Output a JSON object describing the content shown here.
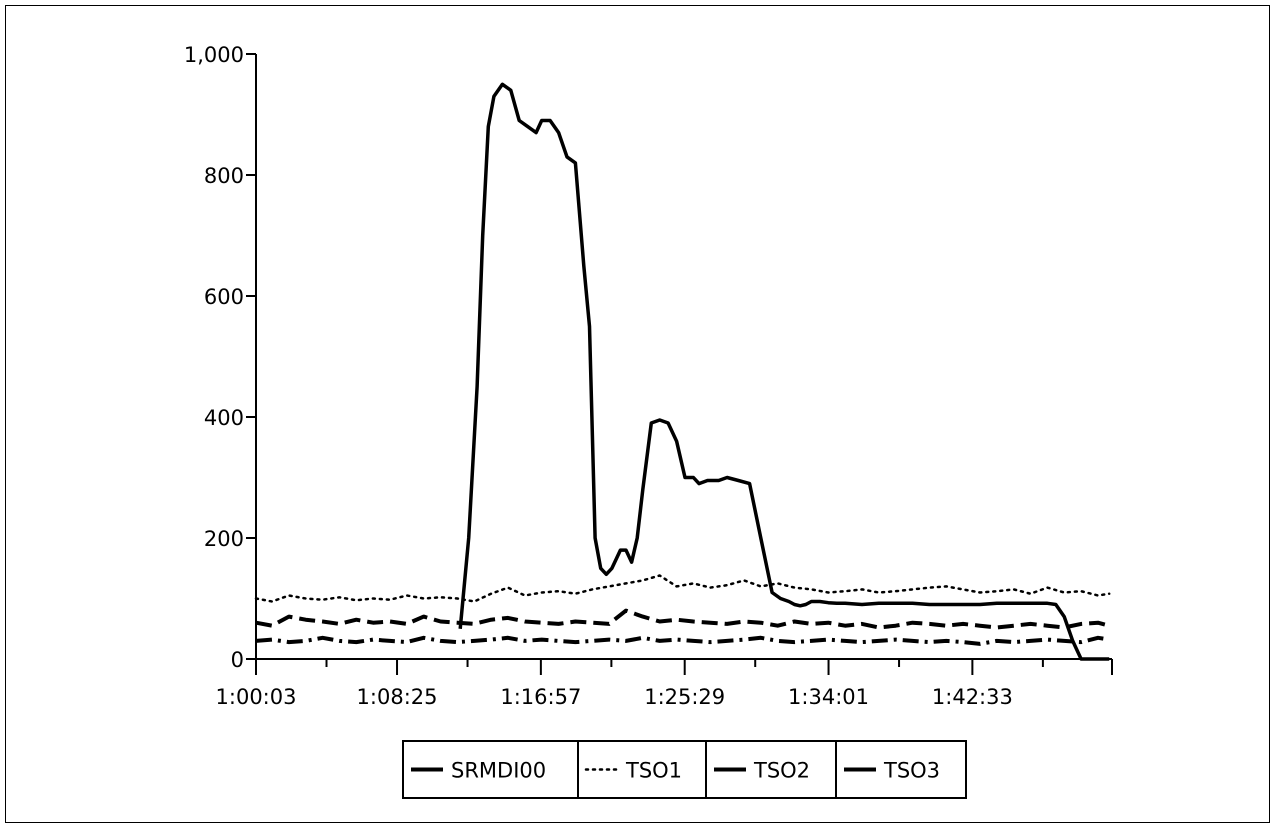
{
  "chart_data": {
    "type": "line",
    "title": "",
    "xlabel": "",
    "ylabel": "",
    "ylim": [
      0,
      1000
    ],
    "yticks": [
      "0",
      "200",
      "400",
      "600",
      "800",
      "1,000"
    ],
    "ytick_values": [
      0,
      200,
      400,
      600,
      800,
      1000
    ],
    "xticks": [
      "1:00:03",
      "1:08:25",
      "1:16:57",
      "1:25:29",
      "1:34:01",
      "1:42:33"
    ],
    "xtick_values": [
      "1:00:03",
      "1:08:25",
      "1:16:57",
      "1:25:29",
      "1:34:01",
      "1:42:33"
    ],
    "xlim": [
      "1:00:03",
      "1:50:50"
    ],
    "grid": false,
    "legend_position": "bottom",
    "series": [
      {
        "name": "SRMDI00",
        "style": "solid",
        "x": [
          "1:12:10",
          "1:12:40",
          "1:13:10",
          "1:13:30",
          "1:13:50",
          "1:14:10",
          "1:14:40",
          "1:15:10",
          "1:15:40",
          "1:16:10",
          "1:16:40",
          "1:17:00",
          "1:17:30",
          "1:18:00",
          "1:18:30",
          "1:19:00",
          "1:19:30",
          "1:19:50",
          "1:20:10",
          "1:20:30",
          "1:20:50",
          "1:21:10",
          "1:21:40",
          "1:22:00",
          "1:22:20",
          "1:22:40",
          "1:23:00",
          "1:23:30",
          "1:24:00",
          "1:24:30",
          "1:25:00",
          "1:25:30",
          "1:26:00",
          "1:26:20",
          "1:26:50",
          "1:27:30",
          "1:28:00",
          "1:28:40",
          "1:29:20",
          "1:30:00",
          "1:30:40",
          "1:31:10",
          "1:31:40",
          "1:32:00",
          "1:32:20",
          "1:32:40",
          "1:33:00",
          "1:33:30",
          "1:34:00",
          "1:34:30",
          "1:35:00",
          "1:36:00",
          "1:37:00",
          "1:38:00",
          "1:39:00",
          "1:40:00",
          "1:41:00",
          "1:42:00",
          "1:43:00",
          "1:44:00",
          "1:45:00",
          "1:46:00",
          "1:47:00",
          "1:47:30",
          "1:48:00",
          "1:48:30",
          "1:49:00",
          "1:50:00",
          "1:50:40"
        ],
        "values": [
          50,
          200,
          450,
          700,
          880,
          930,
          950,
          940,
          890,
          880,
          870,
          890,
          890,
          870,
          830,
          820,
          650,
          550,
          200,
          150,
          140,
          150,
          180,
          180,
          160,
          200,
          280,
          390,
          395,
          390,
          360,
          300,
          300,
          290,
          295,
          295,
          300,
          295,
          290,
          200,
          110,
          100,
          95,
          90,
          88,
          90,
          95,
          95,
          93,
          92,
          92,
          90,
          92,
          92,
          92,
          90,
          90,
          90,
          90,
          92,
          92,
          92,
          92,
          90,
          70,
          30,
          0,
          0,
          0
        ]
      },
      {
        "name": "TSO1",
        "style": "dotted",
        "x": [
          "1:00:03",
          "1:01:00",
          "1:02:00",
          "1:03:00",
          "1:04:00",
          "1:05:00",
          "1:06:00",
          "1:07:00",
          "1:08:00",
          "1:09:00",
          "1:10:00",
          "1:11:00",
          "1:12:00",
          "1:13:00",
          "1:14:00",
          "1:15:00",
          "1:16:00",
          "1:17:00",
          "1:18:00",
          "1:19:00",
          "1:20:00",
          "1:21:00",
          "1:22:00",
          "1:23:00",
          "1:24:00",
          "1:25:00",
          "1:26:00",
          "1:27:00",
          "1:28:00",
          "1:29:00",
          "1:30:00",
          "1:31:00",
          "1:32:00",
          "1:33:00",
          "1:34:00",
          "1:35:00",
          "1:36:00",
          "1:37:00",
          "1:38:00",
          "1:39:00",
          "1:40:00",
          "1:41:00",
          "1:42:00",
          "1:43:00",
          "1:44:00",
          "1:45:00",
          "1:46:00",
          "1:47:00",
          "1:48:00",
          "1:49:00",
          "1:50:00",
          "1:50:40"
        ],
        "values": [
          100,
          95,
          105,
          100,
          98,
          102,
          97,
          100,
          98,
          105,
          100,
          102,
          100,
          95,
          108,
          118,
          105,
          110,
          112,
          108,
          115,
          120,
          125,
          130,
          138,
          120,
          125,
          118,
          122,
          130,
          120,
          125,
          118,
          115,
          110,
          112,
          115,
          110,
          112,
          115,
          118,
          120,
          115,
          110,
          112,
          115,
          108,
          118,
          110,
          112,
          105,
          108
        ]
      },
      {
        "name": "TSO2",
        "style": "dashed",
        "x": [
          "1:00:03",
          "1:01:00",
          "1:02:00",
          "1:03:00",
          "1:04:00",
          "1:05:00",
          "1:06:00",
          "1:07:00",
          "1:08:00",
          "1:09:00",
          "1:10:00",
          "1:11:00",
          "1:12:00",
          "1:13:00",
          "1:14:00",
          "1:15:00",
          "1:16:00",
          "1:17:00",
          "1:18:00",
          "1:19:00",
          "1:20:00",
          "1:21:00",
          "1:22:00",
          "1:23:00",
          "1:24:00",
          "1:25:00",
          "1:26:00",
          "1:27:00",
          "1:28:00",
          "1:29:00",
          "1:30:00",
          "1:31:00",
          "1:32:00",
          "1:33:00",
          "1:34:00",
          "1:35:00",
          "1:36:00",
          "1:37:00",
          "1:38:00",
          "1:39:00",
          "1:40:00",
          "1:41:00",
          "1:42:00",
          "1:43:00",
          "1:44:00",
          "1:45:00",
          "1:46:00",
          "1:47:00",
          "1:48:00",
          "1:49:00",
          "1:50:00",
          "1:50:40"
        ],
        "values": [
          60,
          55,
          70,
          65,
          62,
          58,
          65,
          60,
          62,
          58,
          70,
          62,
          60,
          58,
          65,
          68,
          62,
          60,
          58,
          62,
          60,
          58,
          80,
          70,
          62,
          65,
          62,
          60,
          58,
          62,
          60,
          55,
          62,
          58,
          60,
          55,
          58,
          52,
          55,
          60,
          58,
          55,
          58,
          55,
          52,
          55,
          58,
          55,
          52,
          58,
          60,
          55
        ]
      },
      {
        "name": "TSO3",
        "style": "dashdot",
        "x": [
          "1:00:03",
          "1:01:00",
          "1:02:00",
          "1:03:00",
          "1:04:00",
          "1:05:00",
          "1:06:00",
          "1:07:00",
          "1:08:00",
          "1:09:00",
          "1:10:00",
          "1:11:00",
          "1:12:00",
          "1:13:00",
          "1:14:00",
          "1:15:00",
          "1:16:00",
          "1:17:00",
          "1:18:00",
          "1:19:00",
          "1:20:00",
          "1:21:00",
          "1:22:00",
          "1:23:00",
          "1:24:00",
          "1:25:00",
          "1:26:00",
          "1:27:00",
          "1:28:00",
          "1:29:00",
          "1:30:00",
          "1:31:00",
          "1:32:00",
          "1:33:00",
          "1:34:00",
          "1:35:00",
          "1:36:00",
          "1:37:00",
          "1:38:00",
          "1:39:00",
          "1:40:00",
          "1:41:00",
          "1:42:00",
          "1:43:00",
          "1:44:00",
          "1:45:00",
          "1:46:00",
          "1:47:00",
          "1:48:00",
          "1:49:00",
          "1:50:00",
          "1:50:40"
        ],
        "values": [
          30,
          32,
          28,
          30,
          35,
          30,
          28,
          32,
          30,
          28,
          35,
          30,
          28,
          30,
          32,
          35,
          30,
          32,
          30,
          28,
          30,
          32,
          30,
          35,
          30,
          32,
          30,
          28,
          30,
          32,
          35,
          30,
          28,
          30,
          32,
          30,
          28,
          30,
          32,
          30,
          28,
          30,
          28,
          25,
          30,
          28,
          30,
          32,
          30,
          28,
          35,
          32
        ]
      }
    ]
  }
}
